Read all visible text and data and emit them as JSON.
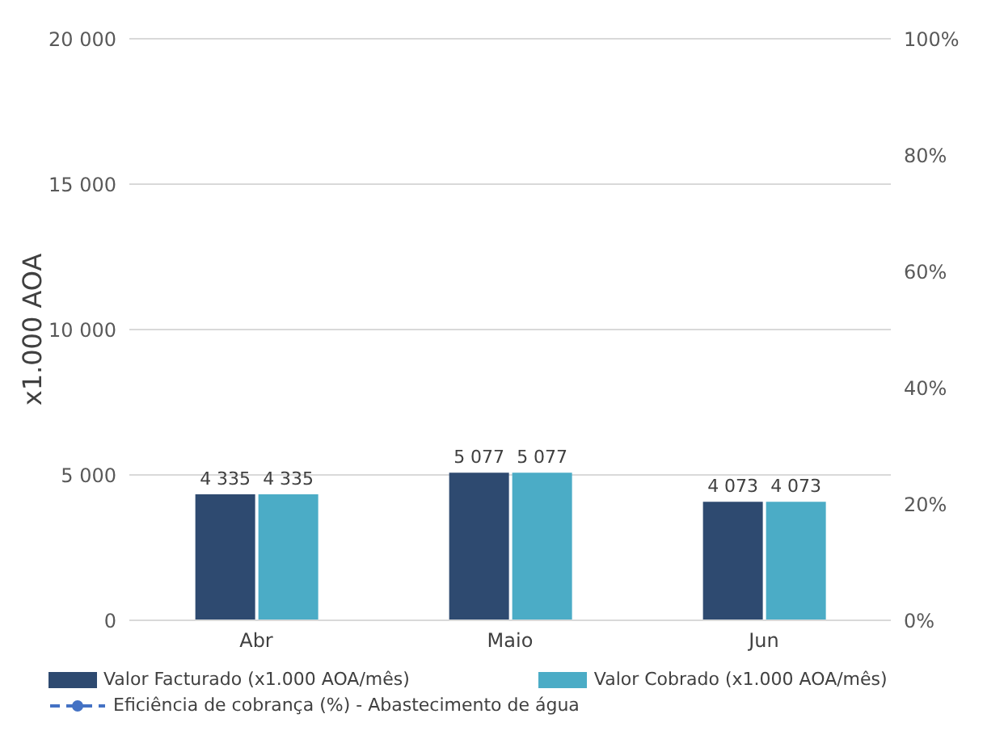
{
  "chart_data": {
    "type": "bar",
    "ylabel": "x1.000 AOA",
    "categories": [
      "Abr",
      "Maio",
      "Jun"
    ],
    "series": [
      {
        "name": "Valor Facturado (x1.000 AOA/mês)",
        "color": "#2e4a70",
        "values": [
          4335,
          5077,
          4073
        ],
        "value_labels": [
          "4 335",
          "5 077",
          "4 073"
        ]
      },
      {
        "name": "Valor Cobrado (x1.000 AOA/mês)",
        "color": "#4bacc6",
        "values": [
          4335,
          5077,
          4073
        ],
        "value_labels": [
          "4 335",
          "5 077",
          "4 073"
        ]
      },
      {
        "name": "Eficiência de cobrança (%) - Abastecimento de água",
        "type": "line",
        "color": "#4472c4",
        "values": [
          null,
          null,
          null
        ],
        "marker": "circle",
        "line_style": "dashed"
      }
    ],
    "ylim": [
      0,
      20000
    ],
    "yticks": [
      0,
      {
        "value": 5000,
        "label": "5 000"
      },
      {
        "value": 10000,
        "label": "10 000"
      },
      {
        "value": 15000,
        "label": "15 000"
      },
      {
        "value": 20000,
        "label": "20 000"
      }
    ],
    "y2lim": [
      0,
      100
    ],
    "y2ticks": [
      {
        "value": 0,
        "label": "0%"
      },
      {
        "value": 20,
        "label": "20%"
      },
      {
        "value": 40,
        "label": "40%"
      },
      {
        "value": 60,
        "label": "60%"
      },
      {
        "value": 80,
        "label": "80%"
      },
      {
        "value": 100,
        "label": "100%"
      }
    ],
    "grid": "y",
    "legend": "bottom"
  }
}
